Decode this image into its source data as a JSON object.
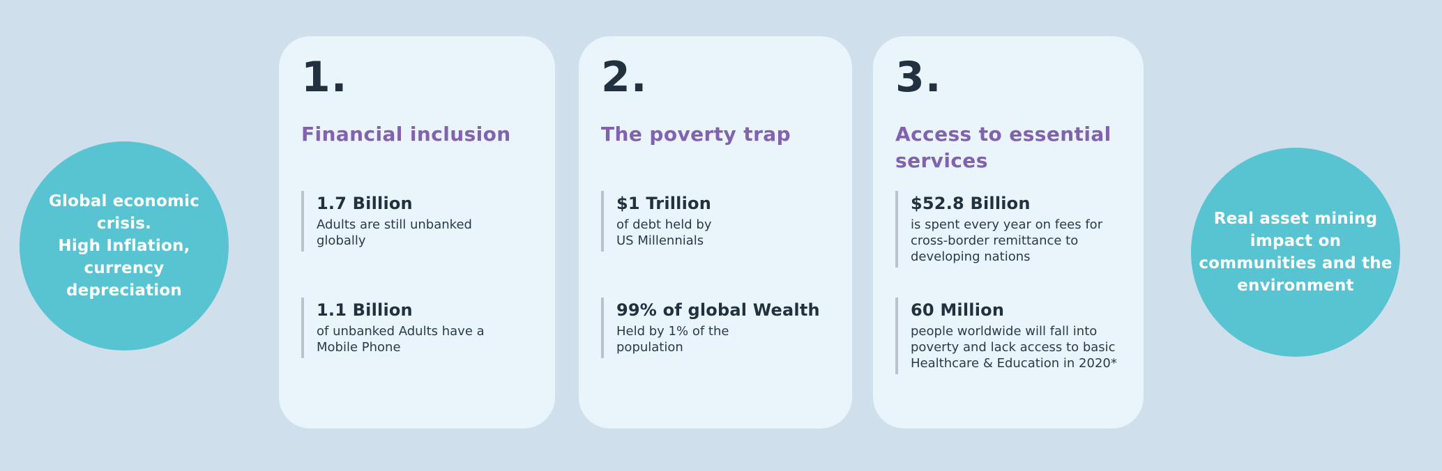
{
  "colors": {
    "background": "#cfe0ec",
    "card_background": "#e9f4fb",
    "bubble_teal": "#58c4d1",
    "heading_purple": "#8261ae",
    "text_dark": "#22313f",
    "stat_bar_gray": "#b9c3cb",
    "bubble_text_white": "#ffffff"
  },
  "left_bubble": {
    "text": "Global economic\ncrisis.\nHigh Inflation,\ncurrency\ndepreciation"
  },
  "right_bubble": {
    "text": "Real asset  mining\nimpact on\ncommunities and the\nenvironment"
  },
  "cards": [
    {
      "number": "1.",
      "title": "Financial inclusion",
      "stats": [
        {
          "value": "1.7 Billion",
          "description": "Adults are still unbanked\nglobally"
        },
        {
          "value": "1.1 Billion",
          "description": "of unbanked Adults have a\nMobile Phone"
        }
      ]
    },
    {
      "number": "2.",
      "title": "The poverty trap",
      "stats": [
        {
          "value": "$1 Trillion",
          "description": "of debt held by\nUS Millennials"
        },
        {
          "value": "99% of global Wealth",
          "description": "Held by 1% of the\npopulation"
        }
      ]
    },
    {
      "number": "3.",
      "title": "Access to essential\nservices",
      "stats": [
        {
          "value": "$52.8 Billion",
          "description": "is spent every year on fees for\ncross-border remittance to\ndeveloping nations"
        },
        {
          "value": "60 Million",
          "description": "people worldwide will fall into\npoverty and lack access to basic\nHealthcare & Education in 2020*"
        }
      ]
    }
  ]
}
